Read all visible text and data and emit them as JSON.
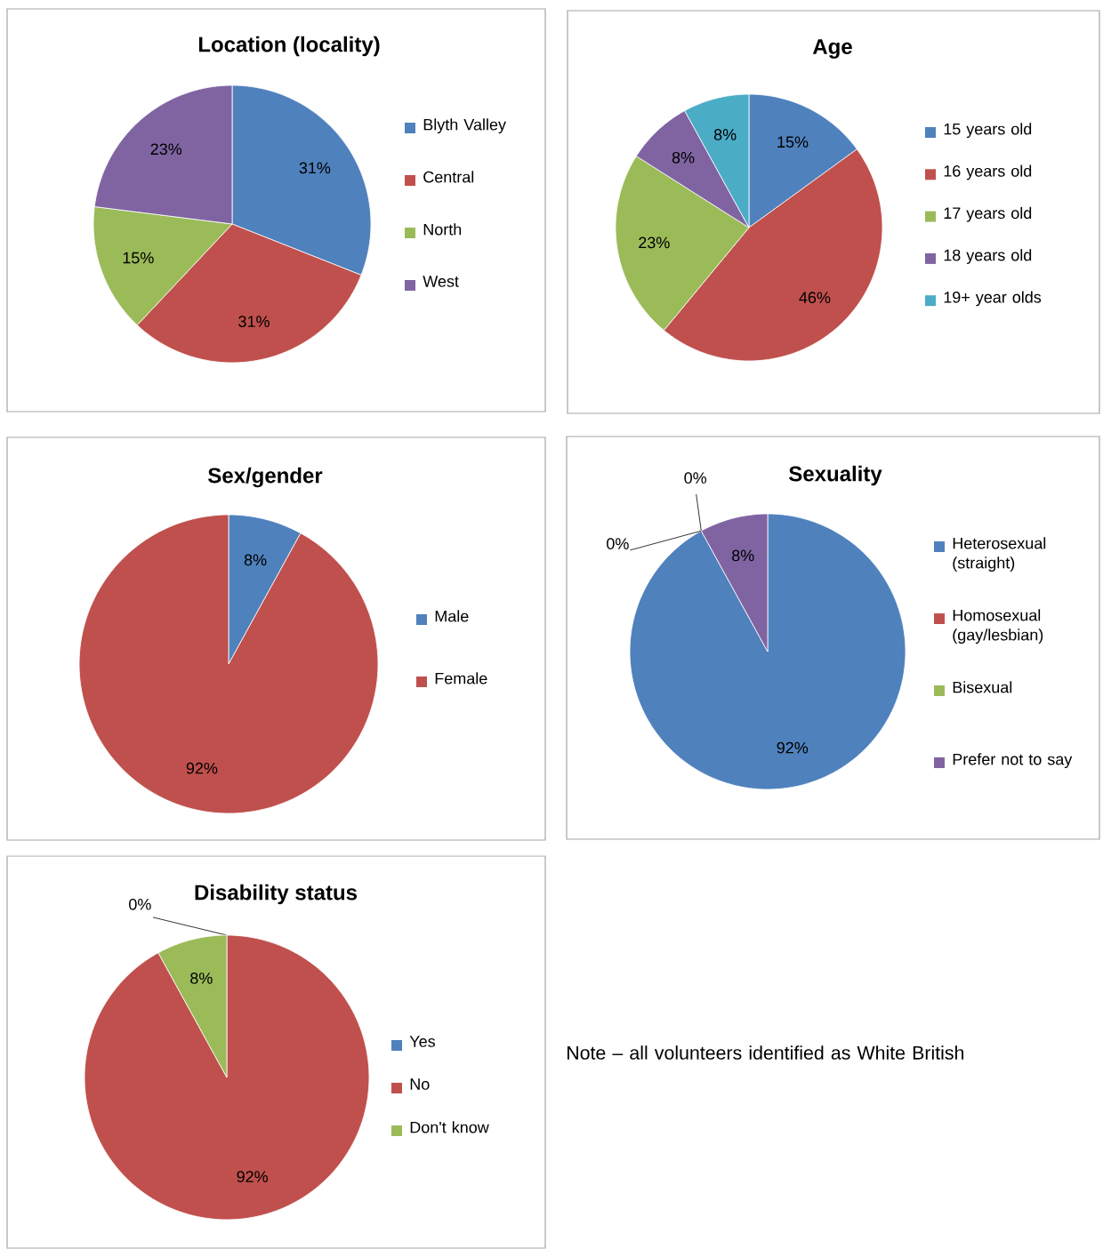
{
  "chart_data": [
    {
      "type": "pie",
      "title": "Location (locality)",
      "categories": [
        "Blyth Valley",
        "Central",
        "North",
        "West"
      ],
      "values": [
        31,
        31,
        15,
        23
      ],
      "value_labels": [
        "31%",
        "31%",
        "15%",
        "23%"
      ],
      "colors": [
        "#4f81bd",
        "#c0504d",
        "#9bbb59",
        "#8064a2"
      ],
      "legend": "right"
    },
    {
      "type": "pie",
      "title": "Age",
      "categories": [
        "15 years old",
        "16 years old",
        "17 years old",
        "18 years old",
        "19+ year olds"
      ],
      "values": [
        15,
        46,
        23,
        8,
        8
      ],
      "value_labels": [
        "15%",
        "46%",
        "23%",
        "8%",
        "8%"
      ],
      "colors": [
        "#4f81bd",
        "#c0504d",
        "#9bbb59",
        "#8064a2",
        "#4bacc6"
      ],
      "legend": "right"
    },
    {
      "type": "pie",
      "title": "Sex/gender",
      "categories": [
        "Male",
        "Female"
      ],
      "values": [
        8,
        92
      ],
      "value_labels": [
        "8%",
        "92%"
      ],
      "colors": [
        "#4f81bd",
        "#c0504d"
      ],
      "legend": "right"
    },
    {
      "type": "pie",
      "title": "Sexuality",
      "categories": [
        "Heterosexual (straight)",
        "Homosexual (gay/lesbian)",
        "Bisexual",
        "Prefer not to say"
      ],
      "values": [
        92,
        0,
        0,
        8
      ],
      "value_labels": [
        "92%",
        "0%",
        "0%",
        "8%"
      ],
      "colors": [
        "#4f81bd",
        "#c0504d",
        "#9bbb59",
        "#8064a2"
      ],
      "legend": "right"
    },
    {
      "type": "pie",
      "title": "Disability status",
      "categories": [
        "Yes",
        "No",
        "Don't know"
      ],
      "values": [
        0,
        92,
        8
      ],
      "value_labels": [
        "0%",
        "92%",
        "8%"
      ],
      "colors": [
        "#4f81bd",
        "#c0504d",
        "#9bbb59"
      ],
      "legend": "right"
    },
    {
      "type": "other",
      "annotations": [
        "Note – all volunteers identified as White British"
      ]
    }
  ]
}
